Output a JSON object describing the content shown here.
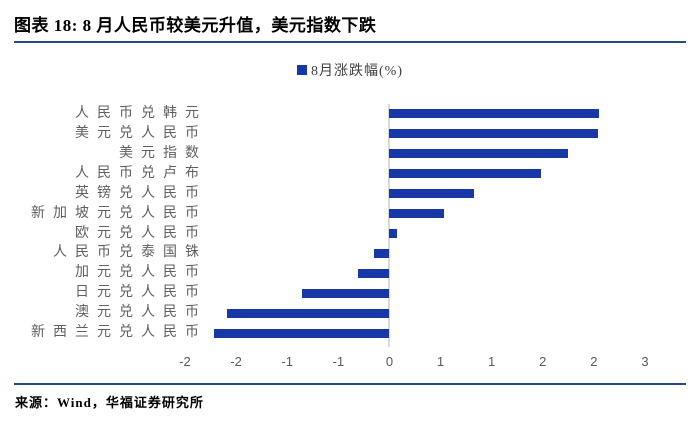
{
  "title": "图表 18: 8 月人民币较美元升值，美元指数下跌",
  "legend": {
    "label": "8月涨跌幅(%)"
  },
  "source": "来源：Wind，华福证券研究所",
  "colors": {
    "bar": "#1838a8",
    "rule": "#234b8c",
    "zero_axis": "#d9d9d9",
    "tick_text": "#595959",
    "category_text": "#606060"
  },
  "chart_data": {
    "type": "bar",
    "orientation": "horizontal",
    "title": "8月涨跌幅(%)",
    "xlabel": "",
    "ylabel": "",
    "legend_position": "top-center",
    "grid": false,
    "xlim": [
      -2,
      2.5
    ],
    "x_tick_values": [
      -2,
      -1.5,
      -1,
      -0.5,
      0,
      0.5,
      1,
      1.5,
      2,
      2.5
    ],
    "x_tick_labels": [
      "-2",
      "-2",
      "-1",
      "-1",
      "0",
      "1",
      "1",
      "2",
      "2",
      "3"
    ],
    "categories": [
      "人民币兑韩元",
      "美元兑人民币",
      "美元指数",
      "人民币兑卢布",
      "英镑兑人民币",
      "新加坡元兑人民币",
      "欧元兑人民币",
      "人民币兑泰国铢",
      "加元兑人民币",
      "日元兑人民币",
      "澳元兑人民币",
      "新西兰元兑人民币"
    ],
    "series": [
      {
        "name": "8月涨跌幅(%)",
        "values": [
          2.05,
          2.04,
          1.75,
          1.48,
          0.83,
          0.53,
          0.07,
          -0.15,
          -0.31,
          -0.86,
          -1.59,
          -1.72
        ]
      }
    ]
  }
}
